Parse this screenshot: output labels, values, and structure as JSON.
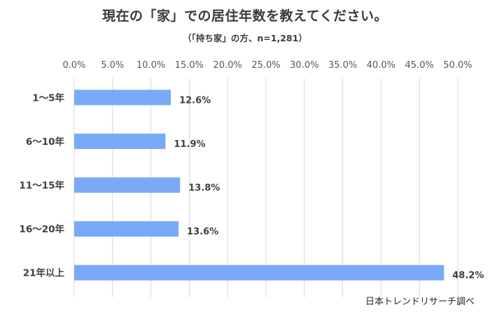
{
  "chart_data": {
    "type": "bar",
    "orientation": "horizontal",
    "title": "現在の「家」での居住年数を教えてください。",
    "subtitle": "（「持ち家」の方、n=1,281）",
    "categories": [
      "1〜5年",
      "6〜10年",
      "11〜15年",
      "16〜20年",
      "21年以上"
    ],
    "values": [
      12.6,
      11.9,
      13.8,
      13.6,
      48.2
    ],
    "value_labels": [
      "12.6%",
      "11.9%",
      "13.8%",
      "13.6%",
      "48.2%"
    ],
    "xlim": [
      0,
      50
    ],
    "x_ticks": [
      0,
      5,
      10,
      15,
      20,
      25,
      30,
      35,
      40,
      45,
      50
    ],
    "x_tick_labels": [
      "0.0%",
      "5.0%",
      "10.0%",
      "15.0%",
      "20.0%",
      "25.0%",
      "30.0%",
      "35.0%",
      "40.0%",
      "45.0%",
      "50.0%"
    ],
    "axis_position": "top",
    "grid": true,
    "bar_color": "#7aaaf7",
    "grid_color": "#d9d9d9"
  },
  "source": "日本トレンドリサーチ調べ"
}
